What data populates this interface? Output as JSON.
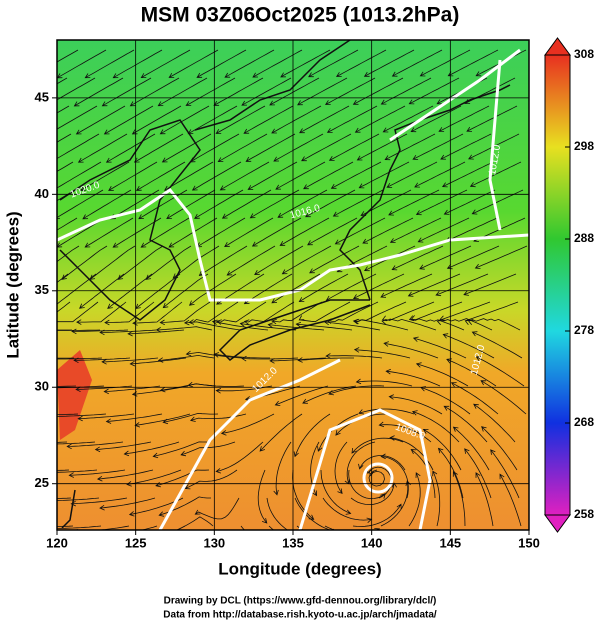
{
  "map": {
    "title": "MSM 03Z06Oct2025 (1013.2hPa)",
    "xlabel": "Longitude (degrees)",
    "ylabel": "Latitude  (degrees)",
    "xlim": [
      120,
      150
    ],
    "ylim": [
      22.6,
      48
    ],
    "xticks": [
      120,
      125,
      130,
      135,
      140,
      145,
      150
    ],
    "yticks": [
      25,
      30,
      35,
      40,
      45
    ]
  },
  "colorbar": {
    "lim": [
      258,
      308
    ],
    "ticks": [
      258,
      268,
      278,
      288,
      298,
      308
    ]
  },
  "isobars": [
    "1020.0",
    "1016.0",
    "1012.0",
    "1012.0",
    "1008.0",
    "1012.0"
  ],
  "credits": [
    "Drawing by DCL (https://www.gfd-dennou.org/library/dcl/)",
    "Data from http://database.rish.kyoto-u.ac.jp/arch/jmadata/"
  ]
}
